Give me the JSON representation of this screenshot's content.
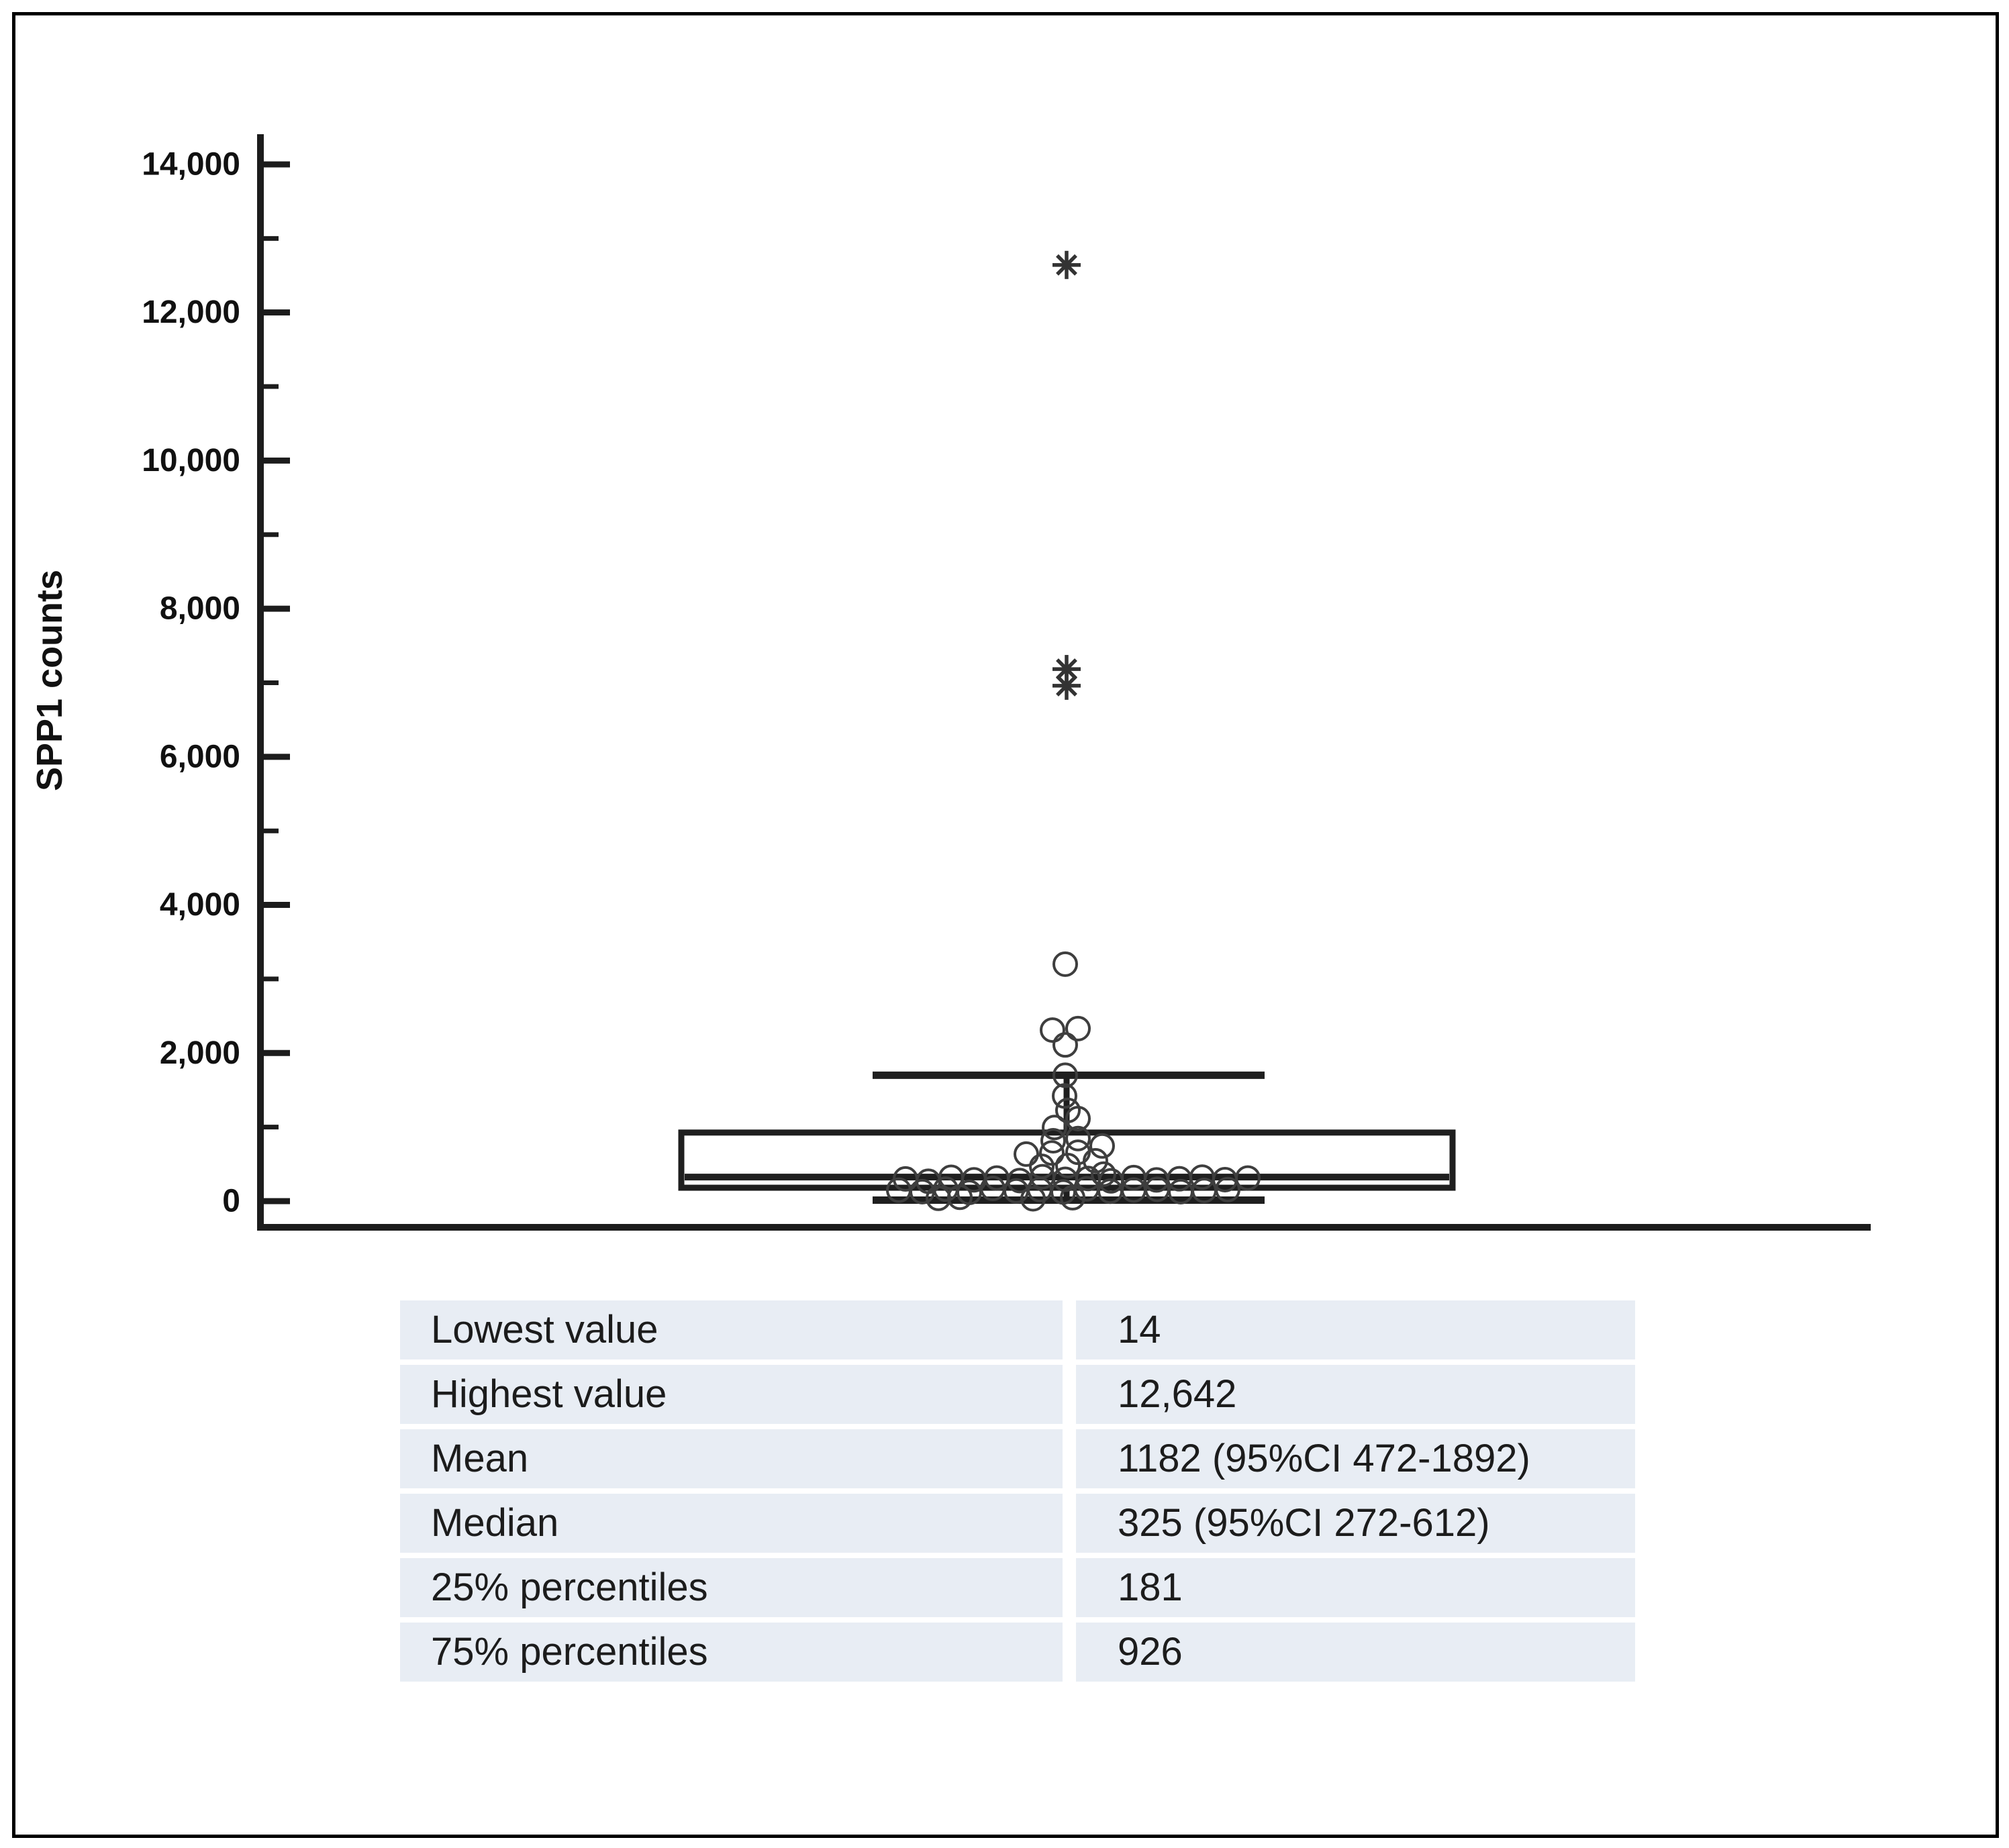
{
  "figure": {
    "background": "#ffffff",
    "border_color": "#000000"
  },
  "chart_data": {
    "type": "box",
    "title": "",
    "xlabel": "",
    "ylabel": "SPP1 counts",
    "ylim": [
      0,
      14800
    ],
    "grid": false,
    "legend": "none",
    "y_axis": {
      "major_tick_values": [
        0,
        2000,
        4000,
        6000,
        8000,
        10000,
        12000,
        14000
      ],
      "major_tick_labels": [
        "0",
        "2,000",
        "4,000",
        "6,000",
        "8,000",
        "10,000",
        "12,000",
        "14,000"
      ],
      "minor_tick_values": [
        1000,
        3000,
        5000,
        7000,
        9000,
        11000,
        13000
      ]
    },
    "box": {
      "q1": 181,
      "median": 325,
      "q3": 926,
      "whisker_low": 14,
      "whisker_high": 1700
    },
    "outliers_asterisk": [
      12642,
      7185,
      6960
    ],
    "points_note": "open-circle jittered data points: [dx_from_center_px, value]",
    "points": [
      [
        -2,
        3200
      ],
      [
        -21,
        2310
      ],
      [
        17,
        2330
      ],
      [
        -2,
        2110
      ],
      [
        -2,
        1700
      ],
      [
        -3,
        1420
      ],
      [
        2,
        1225
      ],
      [
        17,
        1115
      ],
      [
        -18,
        995
      ],
      [
        17,
        845
      ],
      [
        -20,
        815
      ],
      [
        17,
        660
      ],
      [
        -22,
        650
      ],
      [
        -60,
        635
      ],
      [
        53,
        745
      ],
      [
        -37,
        470
      ],
      [
        2,
        480
      ],
      [
        43,
        545
      ],
      [
        55,
        365
      ],
      [
        -240,
        300
      ],
      [
        -206,
        268
      ],
      [
        -172,
        322
      ],
      [
        -138,
        288
      ],
      [
        -104,
        312
      ],
      [
        -70,
        278
      ],
      [
        -36,
        330
      ],
      [
        -2,
        295
      ],
      [
        32,
        306
      ],
      [
        66,
        274
      ],
      [
        100,
        318
      ],
      [
        134,
        286
      ],
      [
        168,
        302
      ],
      [
        202,
        324
      ],
      [
        236,
        290
      ],
      [
        270,
        312
      ],
      [
        -250,
        148
      ],
      [
        -215,
        128
      ],
      [
        -180,
        162
      ],
      [
        -145,
        118
      ],
      [
        -110,
        172
      ],
      [
        -75,
        138
      ],
      [
        -40,
        156
      ],
      [
        -5,
        124
      ],
      [
        30,
        166
      ],
      [
        65,
        134
      ],
      [
        100,
        150
      ],
      [
        135,
        160
      ],
      [
        170,
        128
      ],
      [
        205,
        144
      ],
      [
        240,
        156
      ],
      [
        -191,
        38
      ],
      [
        -159,
        52
      ],
      [
        -50,
        32
      ],
      [
        9,
        46
      ]
    ],
    "colors": {
      "axis_line": "#1c1c1c",
      "box_line": "#1f1f1f",
      "marker_stroke": "#3e3e3e",
      "asterisk": "#333333",
      "tick_label": "#111111"
    }
  },
  "stats_table": {
    "rows": [
      {
        "label": "Lowest value",
        "value": "14"
      },
      {
        "label": "Highest value",
        "value": "12,642"
      },
      {
        "label": "Mean",
        "value": "1182 (95%CI 472-1892)"
      },
      {
        "label": "Median",
        "value": "325 (95%CI 272-612)"
      },
      {
        "label": "25% percentiles",
        "value": "181"
      },
      {
        "label": "75% percentiles",
        "value": "926"
      }
    ],
    "row_bg": "#e8edf4",
    "text_color": "#1c1c1c"
  }
}
